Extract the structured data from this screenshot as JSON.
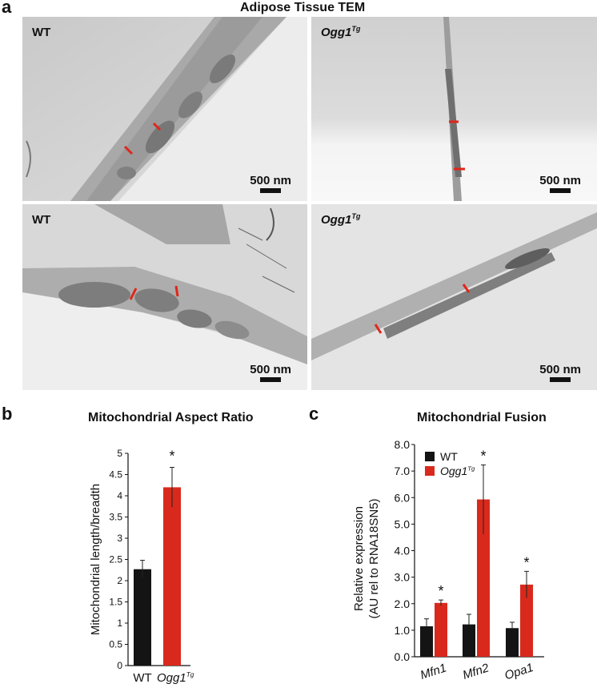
{
  "panel_a": {
    "letter": "a",
    "title": "Adipose Tissue TEM",
    "images": [
      {
        "label": "WT",
        "label_sup": "",
        "scale": "500 nm"
      },
      {
        "label": "Ogg1",
        "label_sup": "Tg",
        "scale": "500 nm"
      },
      {
        "label": "WT",
        "label_sup": "",
        "scale": "500 nm"
      },
      {
        "label": "Ogg1",
        "label_sup": "Tg",
        "scale": "500 nm"
      }
    ]
  },
  "panel_b": {
    "letter": "b",
    "title": "Mitochondrial Aspect Ratio"
  },
  "panel_c": {
    "letter": "c",
    "title": "Mitochondrial Fusion"
  },
  "colors": {
    "wt": "#141414",
    "ogg1": "#d9291c",
    "marker": "#e0261a"
  },
  "chart_data": [
    {
      "type": "bar",
      "title": "Mitochondrial Aspect Ratio",
      "xlabel": "",
      "ylabel": "Mitochondrial length/breadth",
      "categories": [
        "WT",
        "Ogg1Tg"
      ],
      "values": [
        2.27,
        4.2
      ],
      "error_low": [
        2.07,
        3.73
      ],
      "error_high": [
        2.48,
        4.67
      ],
      "significance": [
        "",
        "*"
      ],
      "ylim": [
        0,
        5
      ],
      "yticks": [
        0,
        0.5,
        1,
        1.5,
        2,
        2.5,
        3,
        3.5,
        4,
        4.5,
        5
      ],
      "ytick_labels": [
        "0",
        "0.5",
        "1",
        "1.5",
        "2",
        "2.5",
        "3",
        "3.5",
        "4",
        "4.5",
        "5"
      ],
      "colors": [
        "#141414",
        "#d9291c"
      ],
      "grid": false
    },
    {
      "type": "bar",
      "title": "Mitochondrial Fusion",
      "xlabel": "",
      "ylabel": "Relative expression (AU rel to RNA18SN5)",
      "categories": [
        "Mfn1",
        "Mfn2",
        "Opa1"
      ],
      "series": [
        {
          "name": "WT",
          "values": [
            1.15,
            1.22,
            1.08
          ],
          "error_high": [
            1.43,
            1.6,
            1.3
          ],
          "color": "#141414"
        },
        {
          "name": "Ogg1Tg",
          "values": [
            2.03,
            5.93,
            2.72
          ],
          "error_low": [
            1.93,
            4.62,
            2.22
          ],
          "error_high": [
            2.14,
            7.23,
            3.22
          ],
          "significance": [
            "*",
            "*",
            "*"
          ],
          "color": "#d9291c"
        }
      ],
      "ylim": [
        0,
        8
      ],
      "yticks": [
        0,
        1,
        2,
        3,
        4,
        5,
        6,
        7,
        8
      ],
      "ytick_labels": [
        "0.0",
        "1.0",
        "2.0",
        "3.0",
        "4.0",
        "5.0",
        "6.0",
        "7.0",
        "8.0"
      ],
      "legend": {
        "position": "upper left",
        "entries": [
          "WT",
          "Ogg1Tg"
        ]
      },
      "grid": false
    }
  ]
}
